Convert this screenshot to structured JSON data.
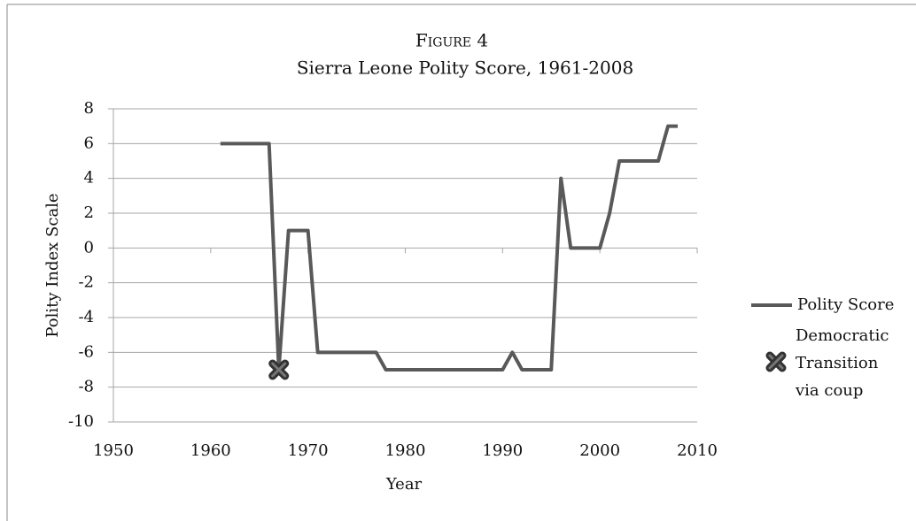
{
  "chart_data": {
    "type": "line",
    "title": "Figure 4",
    "subtitle": "Sierra Leone Polity Score, 1961-2008",
    "x_label": "Year",
    "y_label": "Polity Index Scale",
    "x": [
      1961,
      1962,
      1963,
      1964,
      1965,
      1966,
      1967,
      1968,
      1969,
      1970,
      1971,
      1972,
      1973,
      1974,
      1975,
      1976,
      1977,
      1978,
      1979,
      1980,
      1981,
      1982,
      1983,
      1984,
      1985,
      1986,
      1987,
      1988,
      1989,
      1990,
      1991,
      1992,
      1993,
      1994,
      1995,
      1996,
      1997,
      1998,
      1999,
      2000,
      2001,
      2002,
      2003,
      2004,
      2005,
      2006,
      2007,
      2008
    ],
    "series": [
      {
        "name": "Polity Score",
        "color": "#595959",
        "values": [
          6,
          6,
          6,
          6,
          6,
          6,
          -7,
          1,
          1,
          1,
          -6,
          -6,
          -6,
          -6,
          -6,
          -6,
          -6,
          -7,
          -7,
          -7,
          -7,
          -7,
          -7,
          -7,
          -7,
          -7,
          -7,
          -7,
          -7,
          -7,
          -6,
          -7,
          -7,
          -7,
          -7,
          4,
          0,
          0,
          0,
          0,
          2,
          5,
          5,
          5,
          5,
          5,
          7,
          7
        ]
      }
    ],
    "markers": [
      {
        "name": "Democratic Transition via coup",
        "x": 1967,
        "y": -7,
        "color": "#333333"
      }
    ],
    "xlim": [
      1950,
      2010
    ],
    "xticks": [
      1950,
      1960,
      1970,
      1980,
      1990,
      2000,
      2010
    ],
    "ylim": [
      -10,
      8
    ],
    "yticks": [
      -10,
      -8,
      -6,
      -4,
      -2,
      0,
      2,
      4,
      6,
      8
    ],
    "grid": true,
    "legend": "right"
  }
}
